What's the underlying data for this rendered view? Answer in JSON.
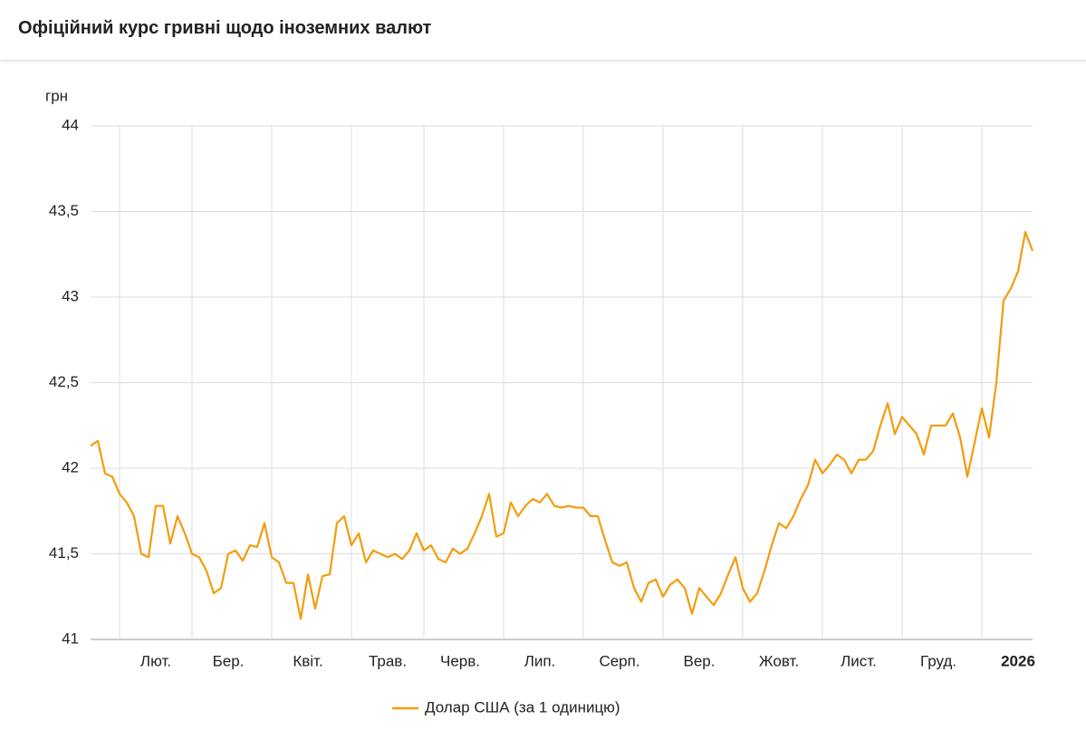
{
  "chart_data": {
    "type": "line",
    "title": "Офіційний курс гривні щодо іноземних валют",
    "y_label": "грн",
    "categories": [
      null,
      null,
      null,
      null,
      "Лют.",
      null,
      null,
      null,
      null,
      null,
      null,
      null,
      null,
      null,
      "Бер.",
      null,
      null,
      null,
      null,
      null,
      null,
      null,
      null,
      null,
      null,
      "Квіт.",
      null,
      null,
      null,
      null,
      null,
      null,
      null,
      null,
      null,
      null,
      "Трав.",
      null,
      null,
      null,
      null,
      null,
      null,
      null,
      null,
      null,
      "Черв.",
      null,
      null,
      null,
      null,
      null,
      null,
      null,
      null,
      null,
      null,
      "Лип.",
      null,
      null,
      null,
      null,
      null,
      null,
      null,
      null,
      null,
      null,
      "Серп.",
      null,
      null,
      null,
      null,
      null,
      null,
      null,
      null,
      null,
      null,
      "Вер.",
      null,
      null,
      null,
      null,
      null,
      null,
      null,
      null,
      null,
      null,
      "Жовт.",
      null,
      null,
      null,
      null,
      null,
      null,
      null,
      null,
      null,
      null,
      "Лист.",
      null,
      null,
      null,
      null,
      null,
      null,
      null,
      null,
      null,
      null,
      "Груд.",
      null,
      null,
      null,
      null,
      null,
      null,
      null,
      null,
      null,
      null,
      "2026",
      null,
      null,
      null,
      null,
      null,
      null,
      null
    ],
    "series": [
      {
        "name": "Долар США (за 1 одиницю)",
        "color": "#f29d0c",
        "values": [
          42.13,
          42.16,
          41.97,
          41.95,
          41.85,
          41.8,
          41.72,
          41.5,
          41.48,
          41.78,
          41.78,
          41.56,
          41.72,
          41.62,
          41.5,
          41.48,
          41.4,
          41.27,
          41.3,
          41.5,
          41.52,
          41.46,
          41.55,
          41.54,
          41.68,
          41.48,
          41.45,
          41.33,
          41.33,
          41.12,
          41.38,
          41.18,
          41.37,
          41.38,
          41.68,
          41.72,
          41.55,
          41.62,
          41.45,
          41.52,
          41.5,
          41.48,
          41.5,
          41.47,
          41.52,
          41.62,
          41.52,
          41.55,
          41.47,
          41.45,
          41.53,
          41.5,
          41.53,
          41.62,
          41.72,
          41.85,
          41.6,
          41.62,
          41.8,
          41.72,
          41.78,
          41.82,
          41.8,
          41.85,
          41.78,
          41.77,
          41.78,
          41.77,
          41.77,
          41.72,
          41.72,
          41.58,
          41.45,
          41.43,
          41.45,
          41.3,
          41.22,
          41.33,
          41.35,
          41.25,
          41.32,
          41.35,
          41.3,
          41.15,
          41.3,
          41.25,
          41.2,
          41.27,
          41.38,
          41.48,
          41.3,
          41.22,
          41.27,
          41.4,
          41.55,
          41.68,
          41.65,
          41.72,
          41.82,
          41.9,
          42.05,
          41.97,
          42.02,
          42.08,
          42.05,
          41.97,
          42.05,
          42.05,
          42.1,
          42.25,
          42.38,
          42.2,
          42.3,
          42.25,
          42.2,
          42.08,
          42.25,
          42.25,
          42.25,
          42.32,
          42.18,
          41.95,
          42.15,
          42.35,
          42.18,
          42.5,
          42.98,
          43.05,
          43.15,
          43.38,
          43.27
        ]
      }
    ],
    "ylim": [
      41,
      44
    ],
    "yticks": [
      41,
      {
        "value": 41.5,
        "label": "41,5"
      },
      42,
      {
        "value": 42.5,
        "label": "42,5"
      },
      43,
      {
        "value": 43.5,
        "label": "43,5"
      },
      44
    ],
    "grid": true,
    "legend": "bottom"
  }
}
